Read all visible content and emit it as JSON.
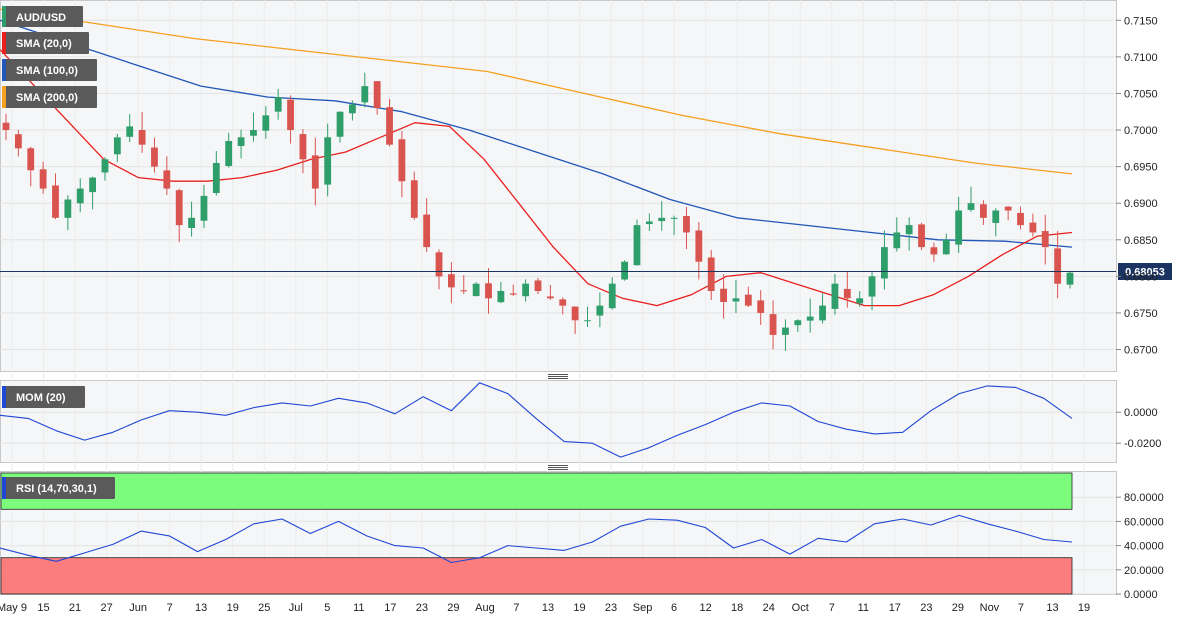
{
  "symbol": "AUD/USD",
  "legend": {
    "sma20": "SMA (20,0)",
    "sma100": "SMA (100,0)",
    "sma200": "SMA (200,0)",
    "mom": "MOM (20)",
    "rsi": "RSI (14,70,30,1)"
  },
  "colors": {
    "up": "#2e9e6b",
    "down": "#d9534f",
    "sma20": "#e8201e",
    "sma100": "#2157b8",
    "sma200": "#f5a021",
    "mom": "#1f47d6",
    "rsi": "#1f47d6",
    "overbought": "#7dfb7d",
    "oversold": "#fb7d7d"
  },
  "current_price": "0.68053",
  "price_axis": [
    "0.7150",
    "0.7100",
    "0.7050",
    "0.7000",
    "0.6950",
    "0.6900",
    "0.6850",
    "0.6800",
    "0.6750",
    "0.6700"
  ],
  "mom_axis": [
    "0.0000",
    "-0.0200"
  ],
  "rsi_axis": [
    "80.0000",
    "60.0000",
    "40.0000",
    "20.0000",
    "0.0000"
  ],
  "x_axis": [
    "May 9",
    "15",
    "21",
    "27",
    "Jun",
    "7",
    "13",
    "19",
    "25",
    "Jul",
    "5",
    "11",
    "17",
    "23",
    "29",
    "Aug",
    "7",
    "13",
    "19",
    "23",
    "Sep",
    "6",
    "12",
    "18",
    "24",
    "Oct",
    "7",
    "11",
    "17",
    "23",
    "29",
    "Nov",
    "7",
    "13",
    "19"
  ],
  "chart_data": [
    {
      "type": "candlestick",
      "title": "AUD/USD",
      "ylim": [
        0.6672,
        0.7175
      ],
      "ohlc_sequence": "generated-approximation",
      "anchor_closes": [
        0.7,
        0.6975,
        0.6945,
        0.692,
        0.688,
        0.6905,
        0.692,
        0.6935,
        0.696,
        0.699,
        0.7005,
        0.698,
        0.695,
        0.692,
        0.687,
        0.688,
        0.691,
        0.6955,
        0.6985,
        0.699,
        0.7,
        0.702,
        0.7045,
        0.7,
        0.696,
        0.692,
        0.699,
        0.7025,
        0.7035,
        0.706,
        0.703,
        0.698,
        0.693,
        0.688,
        0.684,
        0.68,
        0.6785,
        0.678,
        0.679,
        0.677,
        0.678,
        0.6775,
        0.679,
        0.678,
        0.677,
        0.676,
        0.674,
        0.674,
        0.676,
        0.679,
        0.682,
        0.687,
        0.6875,
        0.688,
        0.688,
        0.686,
        0.682,
        0.678,
        0.6765,
        0.677,
        0.676,
        0.675,
        0.672,
        0.673,
        0.674,
        0.6745,
        0.676,
        0.679,
        0.677,
        0.677,
        0.68,
        0.684,
        0.686,
        0.687,
        0.684,
        0.683,
        0.685,
        0.689,
        0.69,
        0.688,
        0.689,
        0.689,
        0.687,
        0.686,
        0.684,
        0.679,
        0.6805
      ],
      "series": [
        {
          "name": "SMA (20,0)",
          "values": [
            0.711,
            0.706,
            0.701,
            0.696,
            0.6935,
            0.693,
            0.693,
            0.6935,
            0.6945,
            0.696,
            0.697,
            0.699,
            0.701,
            0.7005,
            0.696,
            0.69,
            0.684,
            0.679,
            0.677,
            0.676,
            0.6775,
            0.68,
            0.6805,
            0.679,
            0.6775,
            0.676,
            0.676,
            0.6775,
            0.68,
            0.683,
            0.6855,
            0.686
          ]
        },
        {
          "name": "SMA (100,0)",
          "values": [
            0.715,
            0.712,
            0.709,
            0.706,
            0.7045,
            0.704,
            0.7025,
            0.7,
            0.697,
            0.694,
            0.6905,
            0.688,
            0.687,
            0.686,
            0.685,
            0.6848,
            0.684
          ]
        },
        {
          "name": "SMA (200,0)",
          "values": [
            0.7165,
            0.7145,
            0.7125,
            0.711,
            0.7095,
            0.708,
            0.705,
            0.702,
            0.6995,
            0.6975,
            0.6955,
            0.694
          ]
        }
      ]
    },
    {
      "type": "line",
      "title": "MOM (20)",
      "ylim": [
        -0.0315,
        0.0195
      ],
      "series": [
        {
          "name": "MOM (20)",
          "values": [
            -0.002,
            -0.004,
            -0.012,
            -0.018,
            -0.013,
            -0.005,
            0.001,
            0.0,
            -0.002,
            0.003,
            0.006,
            0.004,
            0.009,
            0.006,
            -0.001,
            0.01,
            0.001,
            0.019,
            0.012,
            -0.004,
            -0.019,
            -0.02,
            -0.029,
            -0.023,
            -0.015,
            -0.008,
            0.0,
            0.006,
            0.004,
            -0.006,
            -0.011,
            -0.014,
            -0.013,
            0.001,
            0.012,
            0.017,
            0.016,
            0.009,
            -0.004
          ]
        }
      ]
    },
    {
      "type": "line",
      "title": "RSI (14,70,30,1)",
      "ylim": [
        0,
        100
      ],
      "bands": {
        "overbought": 70,
        "oversold": 30
      },
      "series": [
        {
          "name": "RSI (14,70,30,1)",
          "values": [
            38,
            32,
            27,
            34,
            41,
            52,
            48,
            35,
            45,
            58,
            62,
            50,
            60,
            48,
            40,
            38,
            26,
            30,
            40,
            38,
            36,
            43,
            56,
            62,
            61,
            55,
            38,
            45,
            33,
            46,
            43,
            58,
            62,
            57,
            65,
            58,
            52,
            45,
            43
          ]
        }
      ]
    }
  ]
}
